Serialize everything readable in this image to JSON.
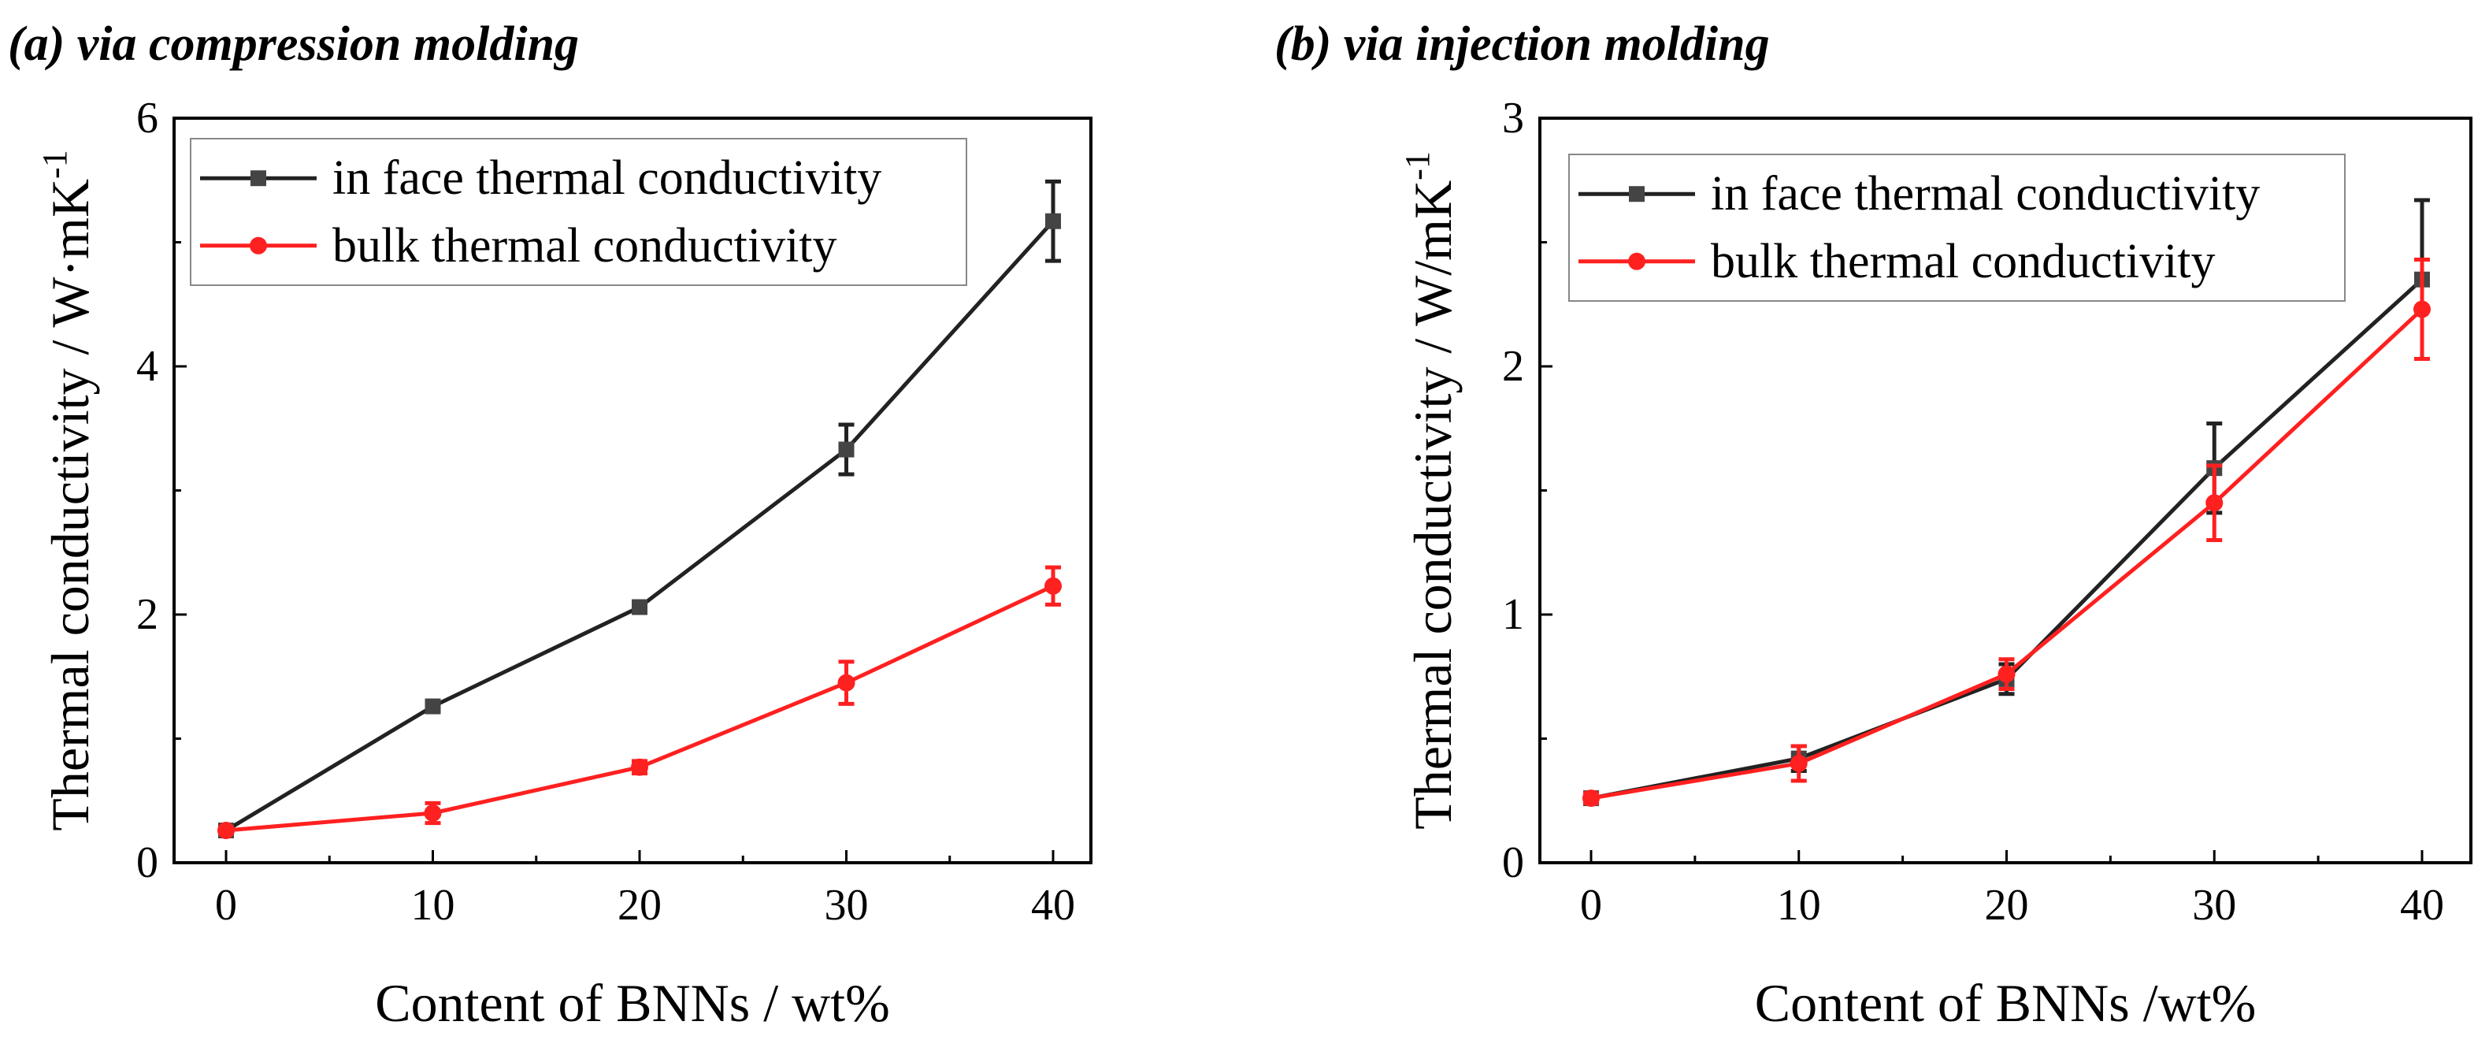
{
  "chart_data": [
    {
      "type": "line",
      "title": "(a) via compression molding",
      "xlabel": "Content of BNNs / wt%",
      "ylabel": "Thermal conductivity / W·mK",
      "ylabel_sup": "-1",
      "x": [
        0,
        10,
        20,
        30,
        40
      ],
      "xticks": [
        "0",
        "10",
        "20",
        "30",
        "40"
      ],
      "yticks": [
        "0",
        "2",
        "4",
        "6"
      ],
      "ytick_values": [
        0,
        2,
        4,
        6
      ],
      "xlim": [
        -3,
        43
      ],
      "ylim": [
        0,
        6
      ],
      "legend_position": "top-left",
      "series": [
        {
          "name": "in face thermal conductivity",
          "color": "#222222",
          "marker": "square",
          "values": [
            0.26,
            1.26,
            2.06,
            3.33,
            5.17
          ],
          "errors": [
            0.02,
            0.03,
            0.04,
            0.2,
            0.32
          ]
        },
        {
          "name": "bulk thermal conductivity",
          "color": "#ff2020",
          "marker": "circle",
          "values": [
            0.26,
            0.4,
            0.77,
            1.45,
            2.23
          ],
          "errors": [
            0.02,
            0.08,
            0.05,
            0.17,
            0.15
          ]
        }
      ]
    },
    {
      "type": "line",
      "title": "(b) via injection molding",
      "xlabel": "Content of BNNs /wt%",
      "ylabel": "Thermal conductivity / W/mK",
      "ylabel_sup": "-1",
      "x": [
        0,
        10,
        20,
        30,
        40
      ],
      "xticks": [
        "0",
        "10",
        "20",
        "30",
        "40"
      ],
      "yticks": [
        "0",
        "1",
        "2",
        "3"
      ],
      "ytick_values": [
        0,
        1,
        2,
        3
      ],
      "xlim": [
        -3,
        42
      ],
      "ylim": [
        0,
        3
      ],
      "legend_position": "top-left",
      "series": [
        {
          "name": "in face thermal conductivity",
          "color": "#222222",
          "marker": "square",
          "values": [
            0.26,
            0.42,
            0.74,
            1.59,
            2.35
          ],
          "errors": [
            0.02,
            0.05,
            0.06,
            0.18,
            0.32
          ]
        },
        {
          "name": "bulk thermal conductivity",
          "color": "#ff2020",
          "marker": "circle",
          "values": [
            0.26,
            0.4,
            0.76,
            1.45,
            2.23
          ],
          "errors": [
            0.02,
            0.07,
            0.06,
            0.15,
            0.2
          ]
        }
      ]
    }
  ]
}
